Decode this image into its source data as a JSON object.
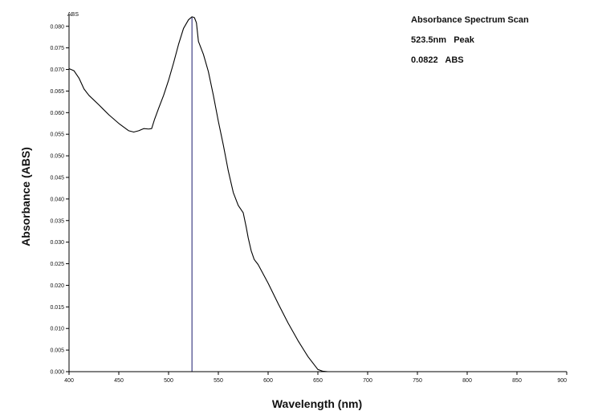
{
  "chart_data": {
    "type": "line",
    "xlabel": "Wavelength (nm)",
    "ylabel": "Absorbance (ABS)",
    "y_unit_label": "ABS",
    "xlim": [
      400,
      900
    ],
    "ylim": [
      0,
      0.082
    ],
    "x_ticks": [
      400,
      450,
      500,
      550,
      600,
      650,
      700,
      750,
      800,
      850,
      900
    ],
    "x_tick_labels": [
      "400",
      "450",
      "500",
      "550",
      "600",
      "650",
      "700",
      "750",
      "800",
      "850",
      "900"
    ],
    "y_ticks": [
      0,
      0.005,
      0.01,
      0.015,
      0.02,
      0.025,
      0.03,
      0.035,
      0.04,
      0.045,
      0.05,
      0.055,
      0.06,
      0.065,
      0.07,
      0.075,
      0.08
    ],
    "y_tick_labels": [
      "0.000",
      "0.005",
      "0.010",
      "0.015",
      "0.020",
      "0.025",
      "0.030",
      "0.035",
      "0.040",
      "0.045",
      "0.050",
      "0.055",
      "0.060",
      "0.065",
      "0.070",
      "0.075",
      "0.080"
    ],
    "annotations": {
      "title": "Absorbance Spectrum Scan",
      "peak_text": "523.5nm   Peak",
      "abs_text": "0.0822   ABS"
    },
    "peak_marker_x": 523.5,
    "grid": false,
    "legend": "none",
    "series": [
      {
        "color": "#000000",
        "x": [
          400,
          405,
          410,
          415,
          420,
          430,
          440,
          450,
          460,
          465,
          470,
          475,
          480,
          483,
          486,
          490,
          495,
          500,
          505,
          510,
          515,
          520,
          523.5,
          526,
          528,
          530,
          535,
          540,
          545,
          550,
          555,
          560,
          565,
          570,
          575,
          578,
          580,
          583,
          586,
          590,
          600,
          610,
          620,
          630,
          640,
          650,
          655,
          660,
          661,
          670,
          700,
          750,
          800,
          850,
          900
        ],
        "y": [
          0.0702,
          0.0697,
          0.068,
          0.0655,
          0.064,
          0.0618,
          0.0595,
          0.0575,
          0.0558,
          0.0555,
          0.0558,
          0.0563,
          0.0562,
          0.0563,
          0.0585,
          0.061,
          0.064,
          0.0675,
          0.0715,
          0.0758,
          0.0795,
          0.0815,
          0.0822,
          0.082,
          0.0808,
          0.0765,
          0.0735,
          0.0695,
          0.064,
          0.058,
          0.0525,
          0.0465,
          0.0415,
          0.0385,
          0.0368,
          0.0335,
          0.031,
          0.028,
          0.026,
          0.0248,
          0.0205,
          0.0158,
          0.0113,
          0.0072,
          0.0035,
          0.0005,
          0.0001,
          0.0,
          0.0,
          0.0,
          0.0,
          0.0,
          0.0,
          0.0,
          0.0
        ]
      }
    ]
  }
}
